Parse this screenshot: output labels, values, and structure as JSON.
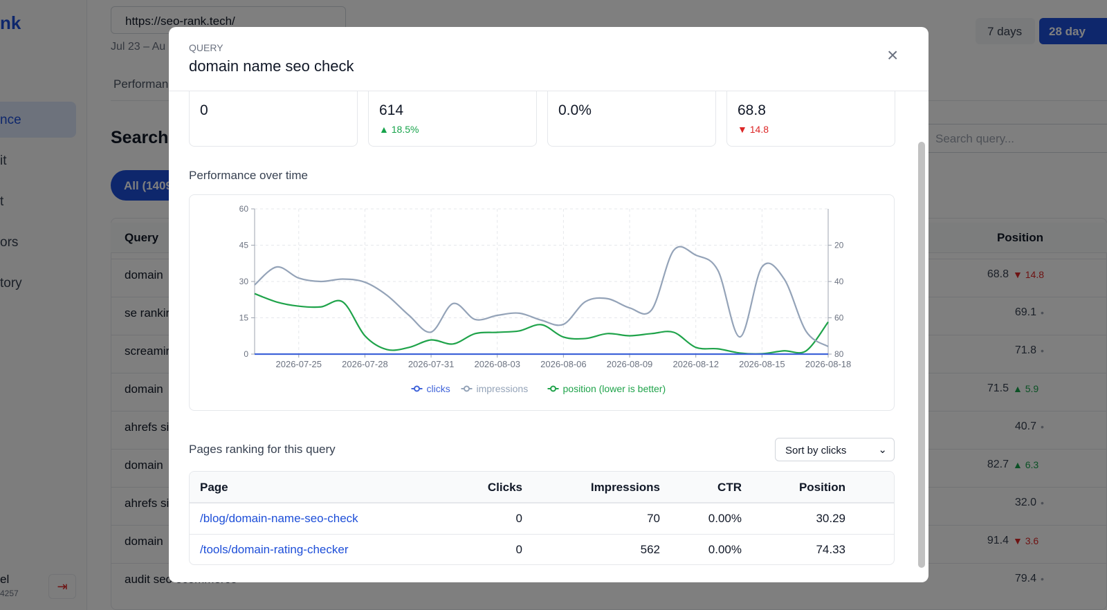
{
  "background": {
    "logo": "nk",
    "nav": [
      "nce",
      "it",
      "t",
      "ors",
      "tory"
    ],
    "user_name": "el",
    "user_id": "4257",
    "site": "https://seo-rank.tech/",
    "date_range": "Jul 23 – Au",
    "tab": "Performan",
    "heading": "Search (",
    "filter": "All (1409",
    "range_buttons": [
      "7 days",
      "28 day"
    ],
    "search_placeholder": "Search query...",
    "table": {
      "headers": [
        "Query",
        "Position"
      ],
      "rows": [
        {
          "query": "domain",
          "position": "68.8",
          "change": "14.8",
          "direction": "down"
        },
        {
          "query": "se rankir",
          "position": "69.1",
          "direction": "none"
        },
        {
          "query": "screamir",
          "position": "71.8",
          "direction": "none"
        },
        {
          "query": "domain",
          "position": "71.5",
          "change": "5.9",
          "direction": "up"
        },
        {
          "query": "ahrefs si",
          "position": "40.7",
          "direction": "none"
        },
        {
          "query": "domain",
          "position": "82.7",
          "change": "6.3",
          "direction": "up"
        },
        {
          "query": "ahrefs si",
          "position": "32.0",
          "direction": "none"
        },
        {
          "query": "domain",
          "position": "91.4",
          "change": "3.6",
          "direction": "down"
        },
        {
          "query": "audit seo ecommerce",
          "position": "79.4",
          "direction": "none"
        }
      ]
    }
  },
  "modal": {
    "label": "QUERY",
    "title": "domain name seo check",
    "stats": [
      {
        "value": "0"
      },
      {
        "value": "614",
        "change": "18.5%",
        "direction": "up"
      },
      {
        "value": "0.0%"
      },
      {
        "value": "68.8",
        "change": "14.8",
        "direction": "down"
      }
    ],
    "chart_heading": "Performance over time",
    "pages_heading": "Pages ranking for this query",
    "sort": "Sort by clicks",
    "pages": {
      "headers": [
        "Page",
        "Clicks",
        "Impressions",
        "CTR",
        "Position"
      ],
      "rows": [
        [
          "/blog/domain-name-seo-check",
          "0",
          "70",
          "0.00%",
          "30.29"
        ],
        [
          "/tools/domain-rating-checker",
          "0",
          "562",
          "0.00%",
          "74.33"
        ]
      ]
    }
  },
  "chart_data": {
    "type": "line",
    "x": [
      "2026-07-23",
      "2026-07-24",
      "2026-07-25",
      "2026-07-26",
      "2026-07-27",
      "2026-07-28",
      "2026-07-29",
      "2026-07-30",
      "2026-07-31",
      "2026-08-01",
      "2026-08-02",
      "2026-08-03",
      "2026-08-04",
      "2026-08-05",
      "2026-08-06",
      "2026-08-07",
      "2026-08-08",
      "2026-08-09",
      "2026-08-10",
      "2026-08-11",
      "2026-08-12",
      "2026-08-13",
      "2026-08-14",
      "2026-08-15",
      "2026-08-16",
      "2026-08-17",
      "2026-08-18"
    ],
    "xticks": [
      "2026-07-25",
      "2026-07-28",
      "2026-07-31",
      "2026-08-03",
      "2026-08-06",
      "2026-08-09",
      "2026-08-12",
      "2026-08-15",
      "2026-08-18"
    ],
    "ylim": [
      0,
      60
    ],
    "yticks": [
      0,
      15,
      30,
      45,
      60
    ],
    "y2lim": [
      0,
      80
    ],
    "y2_reversed": true,
    "y2ticks": [
      20,
      40,
      60,
      80
    ],
    "grid": true,
    "series": [
      {
        "name": "clicks",
        "color": "#3f63d9",
        "values": [
          0,
          0,
          0,
          0,
          0,
          0,
          0,
          0,
          0,
          0,
          0,
          0,
          0,
          0,
          0,
          0,
          0,
          0,
          0,
          0,
          0,
          0,
          0,
          0,
          0,
          0,
          0
        ]
      },
      {
        "name": "impressions",
        "color": "#94a3b8",
        "values": [
          28.6,
          36,
          31.4,
          30,
          31,
          29.7,
          24.3,
          16,
          9.1,
          20.9,
          14.3,
          16,
          16.9,
          14,
          12.3,
          21.7,
          22.9,
          19.1,
          18.3,
          42.9,
          40.9,
          34.6,
          7.1,
          36,
          31.1,
          9.4,
          3.1
        ]
      },
      {
        "name": "position (lower is better)",
        "color": "#1fa34a",
        "axis": "y2",
        "values": [
          46.7,
          51.3,
          53.6,
          54,
          51.3,
          69.9,
          77.5,
          76.3,
          72.2,
          74.4,
          68.7,
          68,
          67.2,
          63.8,
          70.6,
          71.4,
          68.7,
          69.9,
          68.7,
          68,
          76.3,
          77.1,
          79.4,
          79.8,
          78.2,
          78.2,
          62.3
        ]
      }
    ]
  }
}
